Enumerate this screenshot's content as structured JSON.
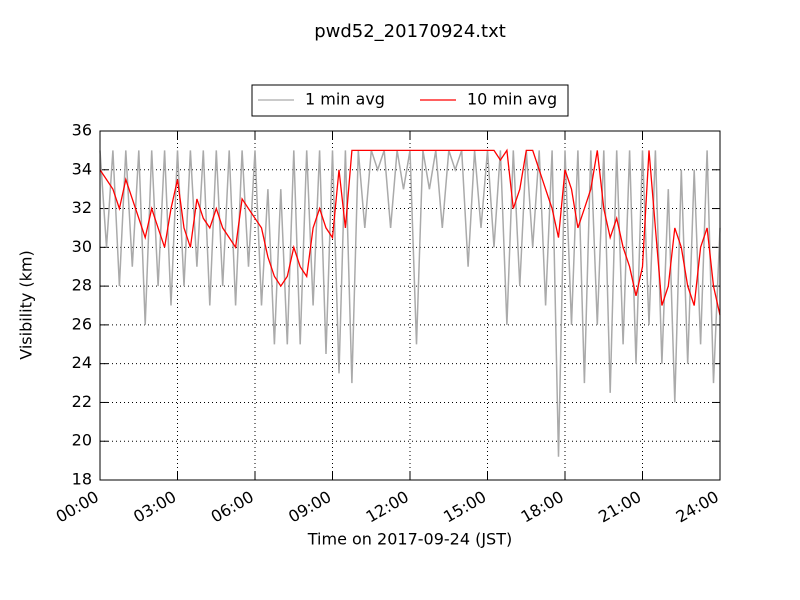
{
  "chart_data": {
    "type": "line",
    "title": "pwd52_20170924.txt",
    "xlabel": "Time on 2017-09-24 (JST)",
    "ylabel": "Visibility (km)",
    "x": [
      0,
      0.25,
      0.5,
      0.75,
      1,
      1.25,
      1.5,
      1.75,
      2,
      2.25,
      2.5,
      2.75,
      3,
      3.25,
      3.5,
      3.75,
      4,
      4.25,
      4.5,
      4.75,
      5,
      5.25,
      5.5,
      5.75,
      6,
      6.25,
      6.5,
      6.75,
      7,
      7.25,
      7.5,
      7.75,
      8,
      8.25,
      8.5,
      8.75,
      9,
      9.25,
      9.5,
      9.75,
      10,
      10.25,
      10.5,
      10.75,
      11,
      11.25,
      11.5,
      11.75,
      12,
      12.25,
      12.5,
      12.75,
      13,
      13.25,
      13.5,
      13.75,
      14,
      14.25,
      14.5,
      14.75,
      15,
      15.25,
      15.5,
      15.75,
      16,
      16.25,
      16.5,
      16.75,
      17,
      17.25,
      17.5,
      17.75,
      18,
      18.25,
      18.5,
      18.75,
      19,
      19.25,
      19.5,
      19.75,
      20,
      20.25,
      20.5,
      20.75,
      21,
      21.25,
      21.5,
      21.75,
      22,
      22.25,
      22.5,
      22.75,
      23,
      23.25,
      23.5,
      23.75,
      24
    ],
    "series": [
      {
        "name": "1 min avg",
        "color": "#aaaaaa",
        "values": [
          35,
          30,
          35,
          28,
          35,
          29,
          35,
          26,
          35,
          28,
          35,
          27,
          35,
          28,
          35,
          29,
          35,
          27,
          35,
          28,
          35,
          27,
          35,
          29,
          35,
          27,
          33,
          25,
          33,
          25,
          35,
          25,
          35,
          27,
          35,
          24.5,
          35,
          23.5,
          35,
          23,
          35,
          31,
          35,
          34,
          35,
          31,
          35,
          33,
          35,
          25,
          35,
          33,
          35,
          31,
          35,
          34,
          35,
          29,
          35,
          31,
          35,
          30,
          35,
          26,
          35,
          28,
          35,
          30,
          35,
          27,
          35,
          19.2,
          35,
          26,
          35,
          23,
          35,
          26,
          35,
          22.5,
          35,
          25,
          35,
          24,
          35,
          26,
          35,
          24,
          33,
          22,
          34,
          24,
          34,
          25,
          35,
          23,
          31
        ]
      },
      {
        "name": "10 min avg",
        "color": "#ff0000",
        "values": [
          34,
          33.5,
          33,
          32,
          33.5,
          32.5,
          31.5,
          30.5,
          32,
          31,
          30,
          32,
          33.5,
          31,
          30,
          32.5,
          31.5,
          31,
          32,
          31,
          30.5,
          30,
          32.5,
          32,
          31.5,
          31,
          29.5,
          28.5,
          28,
          28.5,
          30,
          29,
          28.5,
          31,
          32,
          31,
          30.5,
          34,
          31,
          35,
          35,
          35,
          35,
          35,
          35,
          35,
          35,
          35,
          35,
          35,
          35,
          35,
          35,
          35,
          35,
          35,
          35,
          35,
          35,
          35,
          35,
          35,
          34.5,
          35,
          32,
          33,
          35,
          35,
          34,
          33,
          32,
          30.5,
          34,
          33,
          31,
          32,
          33,
          35,
          32,
          30.5,
          31.5,
          30,
          29,
          27.5,
          29,
          35,
          31,
          27,
          28,
          31,
          30,
          28,
          27,
          30,
          31,
          28,
          26.5
        ]
      }
    ],
    "xlim": [
      0,
      24
    ],
    "xticks": [
      {
        "value": 0,
        "label": "00:00"
      },
      {
        "value": 3,
        "label": "03:00"
      },
      {
        "value": 6,
        "label": "06:00"
      },
      {
        "value": 9,
        "label": "09:00"
      },
      {
        "value": 12,
        "label": "12:00"
      },
      {
        "value": 15,
        "label": "15:00"
      },
      {
        "value": 18,
        "label": "18:00"
      },
      {
        "value": 21,
        "label": "21:00"
      },
      {
        "value": 24,
        "label": "24:00"
      }
    ],
    "ylim": [
      18,
      36
    ],
    "yticks": [
      18,
      20,
      22,
      24,
      26,
      28,
      30,
      32,
      34,
      36
    ],
    "grid": true,
    "legend": "upper center"
  }
}
